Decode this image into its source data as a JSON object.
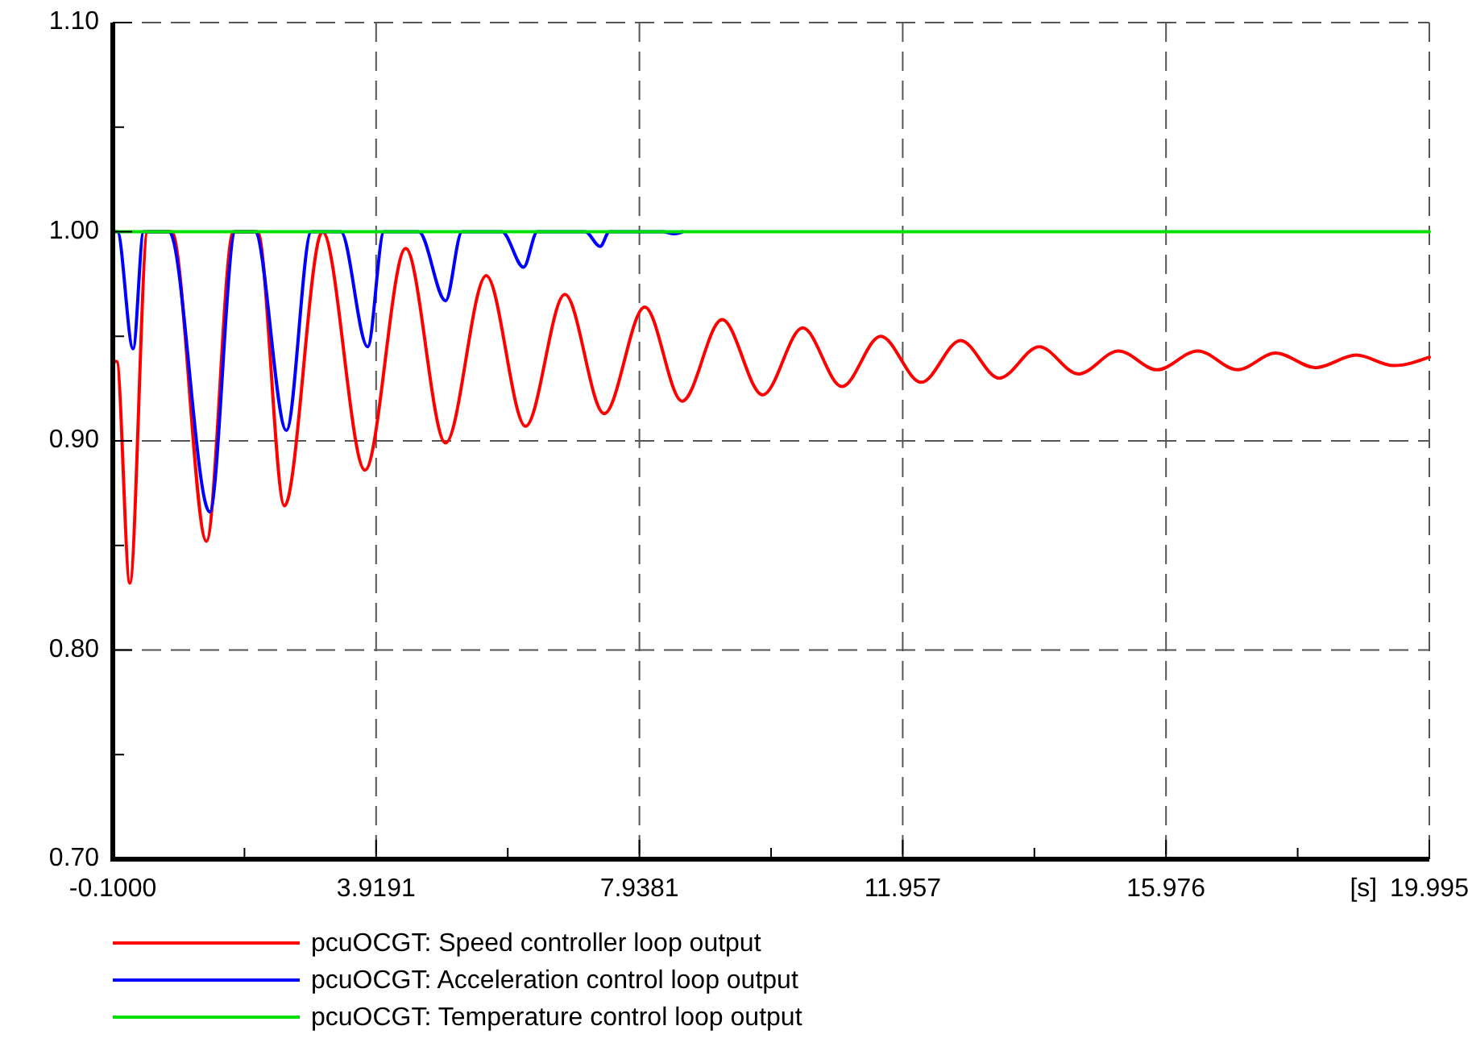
{
  "chart_data": {
    "type": "line",
    "xlabel": "[s]",
    "xlim": [
      -0.1,
      19.995
    ],
    "ylim": [
      0.7,
      1.1
    ],
    "xticks": [
      {
        "value": -0.1,
        "label": "-0.1000"
      },
      {
        "value": 1.9096,
        "label": null
      },
      3.9191,
      {
        "value": 5.9286,
        "label": null
      },
      7.9381,
      {
        "value": 9.9476,
        "label": null
      },
      11.957,
      {
        "value": 13.9665,
        "label": null
      },
      15.976,
      {
        "value": 17.9855,
        "label": null
      },
      19.995
    ],
    "yticks": [
      {
        "value": 0.7,
        "label": "0.70"
      },
      {
        "value": 0.75,
        "label": null
      },
      {
        "value": 0.8,
        "label": "0.80"
      },
      {
        "value": 0.85,
        "label": null
      },
      {
        "value": 0.9,
        "label": "0.90"
      },
      {
        "value": 0.95,
        "label": null
      },
      {
        "value": 1.0,
        "label": "1.00"
      },
      {
        "value": 1.05,
        "label": null
      },
      {
        "value": 1.1,
        "label": "1.10"
      }
    ],
    "grid": true,
    "legend": "bottom",
    "marker": "none",
    "line_style": "solid",
    "series": [
      {
        "name": "pcuOCGT: Speed controller loop output",
        "color": "#ff0000",
        "x": [
          -0.1,
          -0.04,
          0.16,
          0.43,
          0.8,
          1.33,
          1.74,
          2.11,
          2.52,
          3.1,
          3.75,
          4.37,
          4.98,
          5.6,
          6.2,
          6.8,
          7.4,
          8.02,
          8.59,
          9.2,
          9.82,
          10.43,
          11.03,
          11.62,
          12.24,
          12.84,
          13.43,
          14.04,
          14.64,
          15.25,
          15.84,
          16.46,
          17.07,
          17.65,
          18.26,
          18.88,
          19.45,
          19.995
        ],
        "values": [
          0.938,
          0.938,
          0.832,
          1.0,
          1.0,
          0.852,
          1.0,
          1.0,
          0.869,
          1.0,
          0.886,
          0.992,
          0.899,
          0.979,
          0.907,
          0.97,
          0.913,
          0.964,
          0.919,
          0.958,
          0.922,
          0.954,
          0.926,
          0.95,
          0.928,
          0.948,
          0.93,
          0.945,
          0.932,
          0.943,
          0.934,
          0.943,
          0.934,
          0.942,
          0.935,
          0.941,
          0.936,
          0.94
        ]
      },
      {
        "name": "pcuOCGT: Acceleration control loop output",
        "color": "#0000ff",
        "x": [
          -0.1,
          -0.03,
          0.21,
          0.37,
          0.76,
          1.38,
          1.77,
          2.07,
          2.55,
          2.93,
          3.38,
          3.79,
          4.04,
          4.57,
          4.98,
          5.23,
          5.84,
          6.17,
          6.38,
          7.11,
          7.34,
          7.48,
          8.3,
          8.46,
          8.6
        ],
        "values": [
          1.0,
          1.0,
          0.944,
          1.0,
          1.0,
          0.866,
          1.0,
          1.0,
          0.905,
          1.0,
          1.0,
          0.945,
          1.0,
          1.0,
          0.967,
          1.0,
          1.0,
          0.983,
          1.0,
          1.0,
          0.993,
          1.0,
          1.0,
          0.999,
          1.0
        ]
      },
      {
        "name": "pcuOCGT: Temperature control loop output",
        "color": "#00e000",
        "x": [
          -0.1,
          19.995
        ],
        "values": [
          1.0,
          1.0
        ]
      }
    ]
  }
}
